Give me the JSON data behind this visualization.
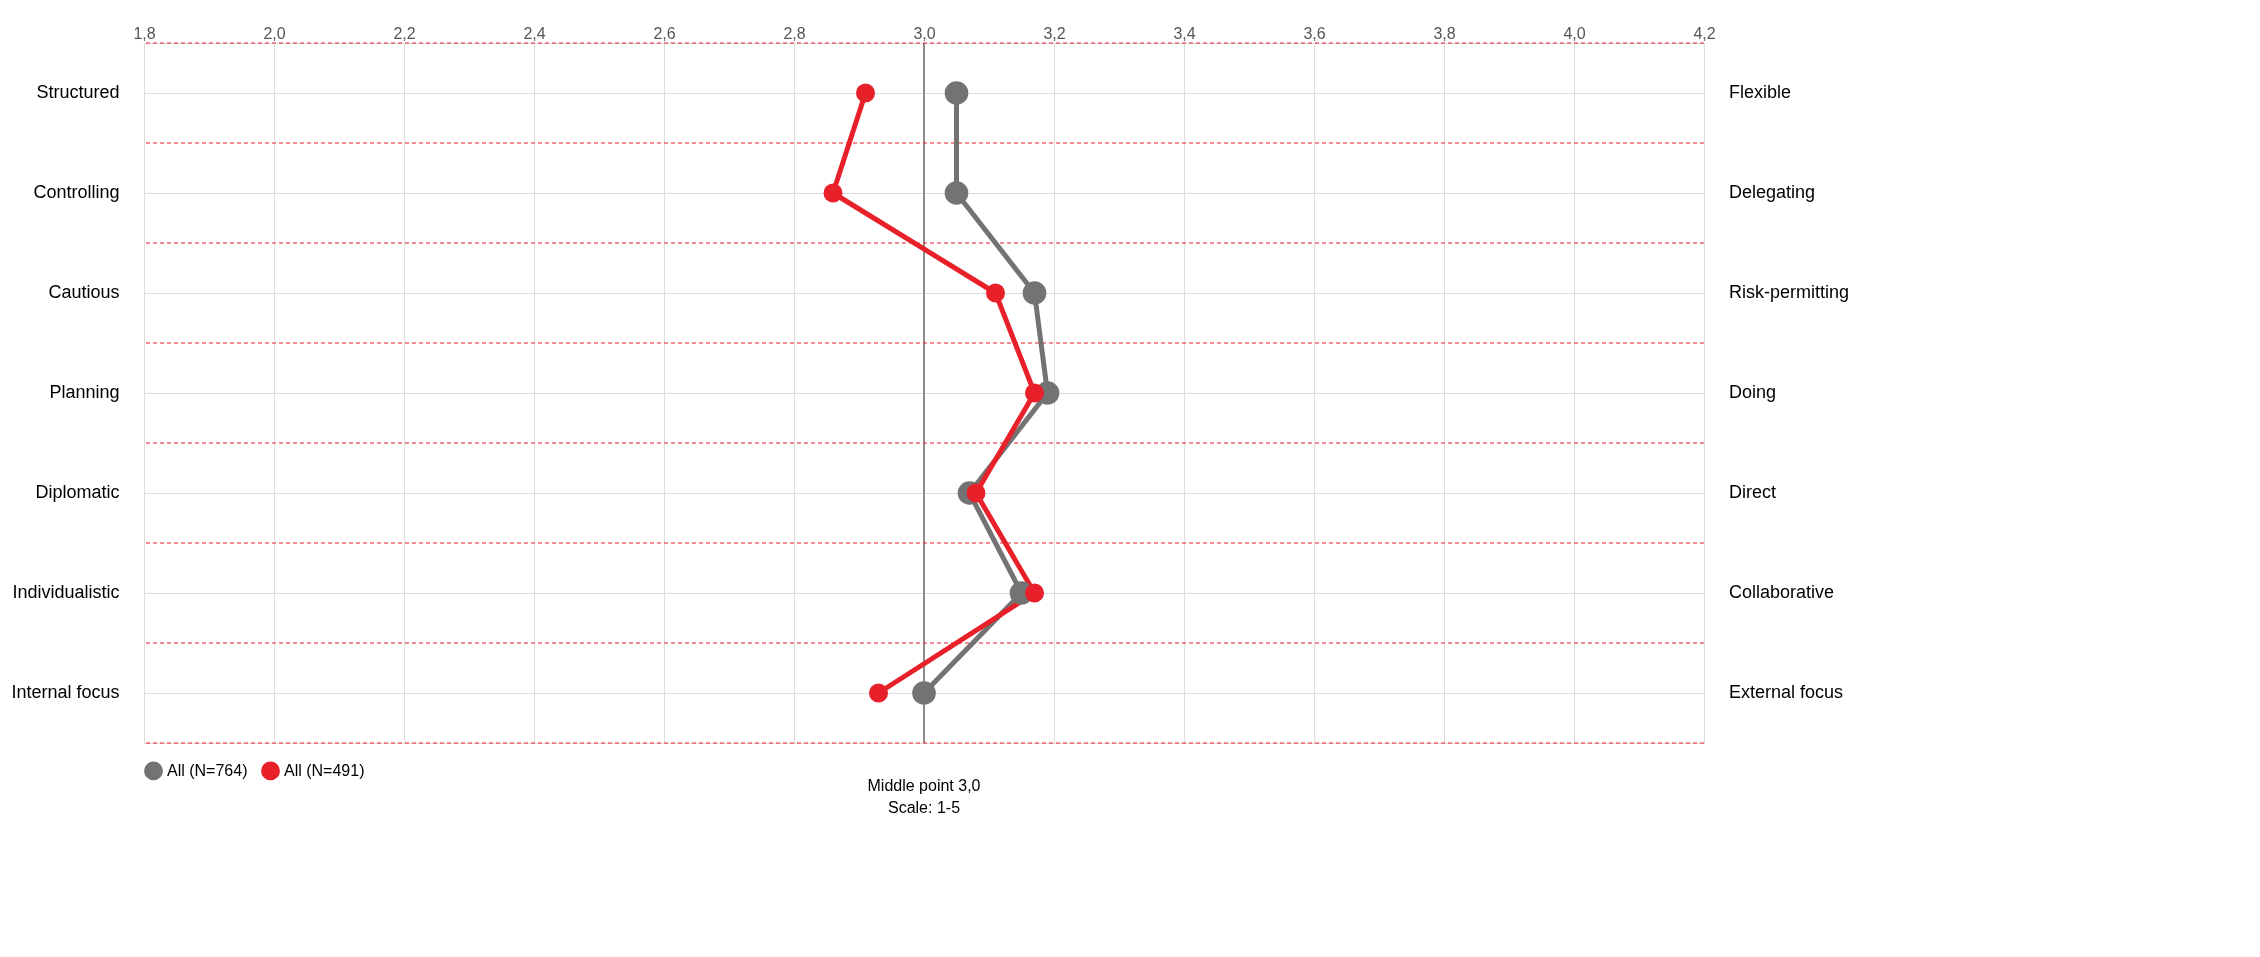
{
  "chart_data": {
    "type": "line",
    "categories": [
      "Structured",
      "Controlling",
      "Cautious",
      "Planning",
      "Diplomatic",
      "Individualistic",
      "Internal focus"
    ],
    "y2_categories": [
      "Flexible",
      "Delegating",
      "Risk-permitting",
      "Doing",
      "Direct",
      "Collaborative",
      "External focus"
    ],
    "series": [
      {
        "name": "All (N=764)",
        "color": "#737373",
        "values": [
          3.05,
          3.05,
          3.17,
          3.19,
          3.07,
          3.15,
          3.0
        ]
      },
      {
        "name": "All (N=491)",
        "color": "#e8202a",
        "values": [
          2.91,
          2.86,
          3.11,
          3.17,
          3.08,
          3.17,
          2.93
        ]
      }
    ],
    "orientation": "horizontal",
    "xlim": [
      1.8,
      4.2
    ],
    "xticks": [
      {
        "value": 1.8,
        "label": "1,8"
      },
      {
        "value": 2.0,
        "label": "2,0"
      },
      {
        "value": 2.2,
        "label": "2,2"
      },
      {
        "value": 2.4,
        "label": "2,4"
      },
      {
        "value": 2.6,
        "label": "2,6"
      },
      {
        "value": 2.8,
        "label": "2,8"
      },
      {
        "value": 3.0,
        "label": "3,0"
      },
      {
        "value": 3.2,
        "label": "3,2"
      },
      {
        "value": 3.4,
        "label": "3,4"
      },
      {
        "value": 3.6,
        "label": "3,6"
      },
      {
        "value": 3.8,
        "label": "3,8"
      },
      {
        "value": 4.0,
        "label": "4,0"
      },
      {
        "value": 4.2,
        "label": "4,2"
      }
    ],
    "ref_lines": [
      {
        "axis": "x",
        "value": 3.0,
        "label": "Middle point 3,0",
        "color": "#8c8c8c"
      }
    ],
    "annotations": [
      "Scale: 1-5"
    ],
    "grid": true,
    "legend": "bottom",
    "marker": "circle",
    "line_style": "solid"
  }
}
